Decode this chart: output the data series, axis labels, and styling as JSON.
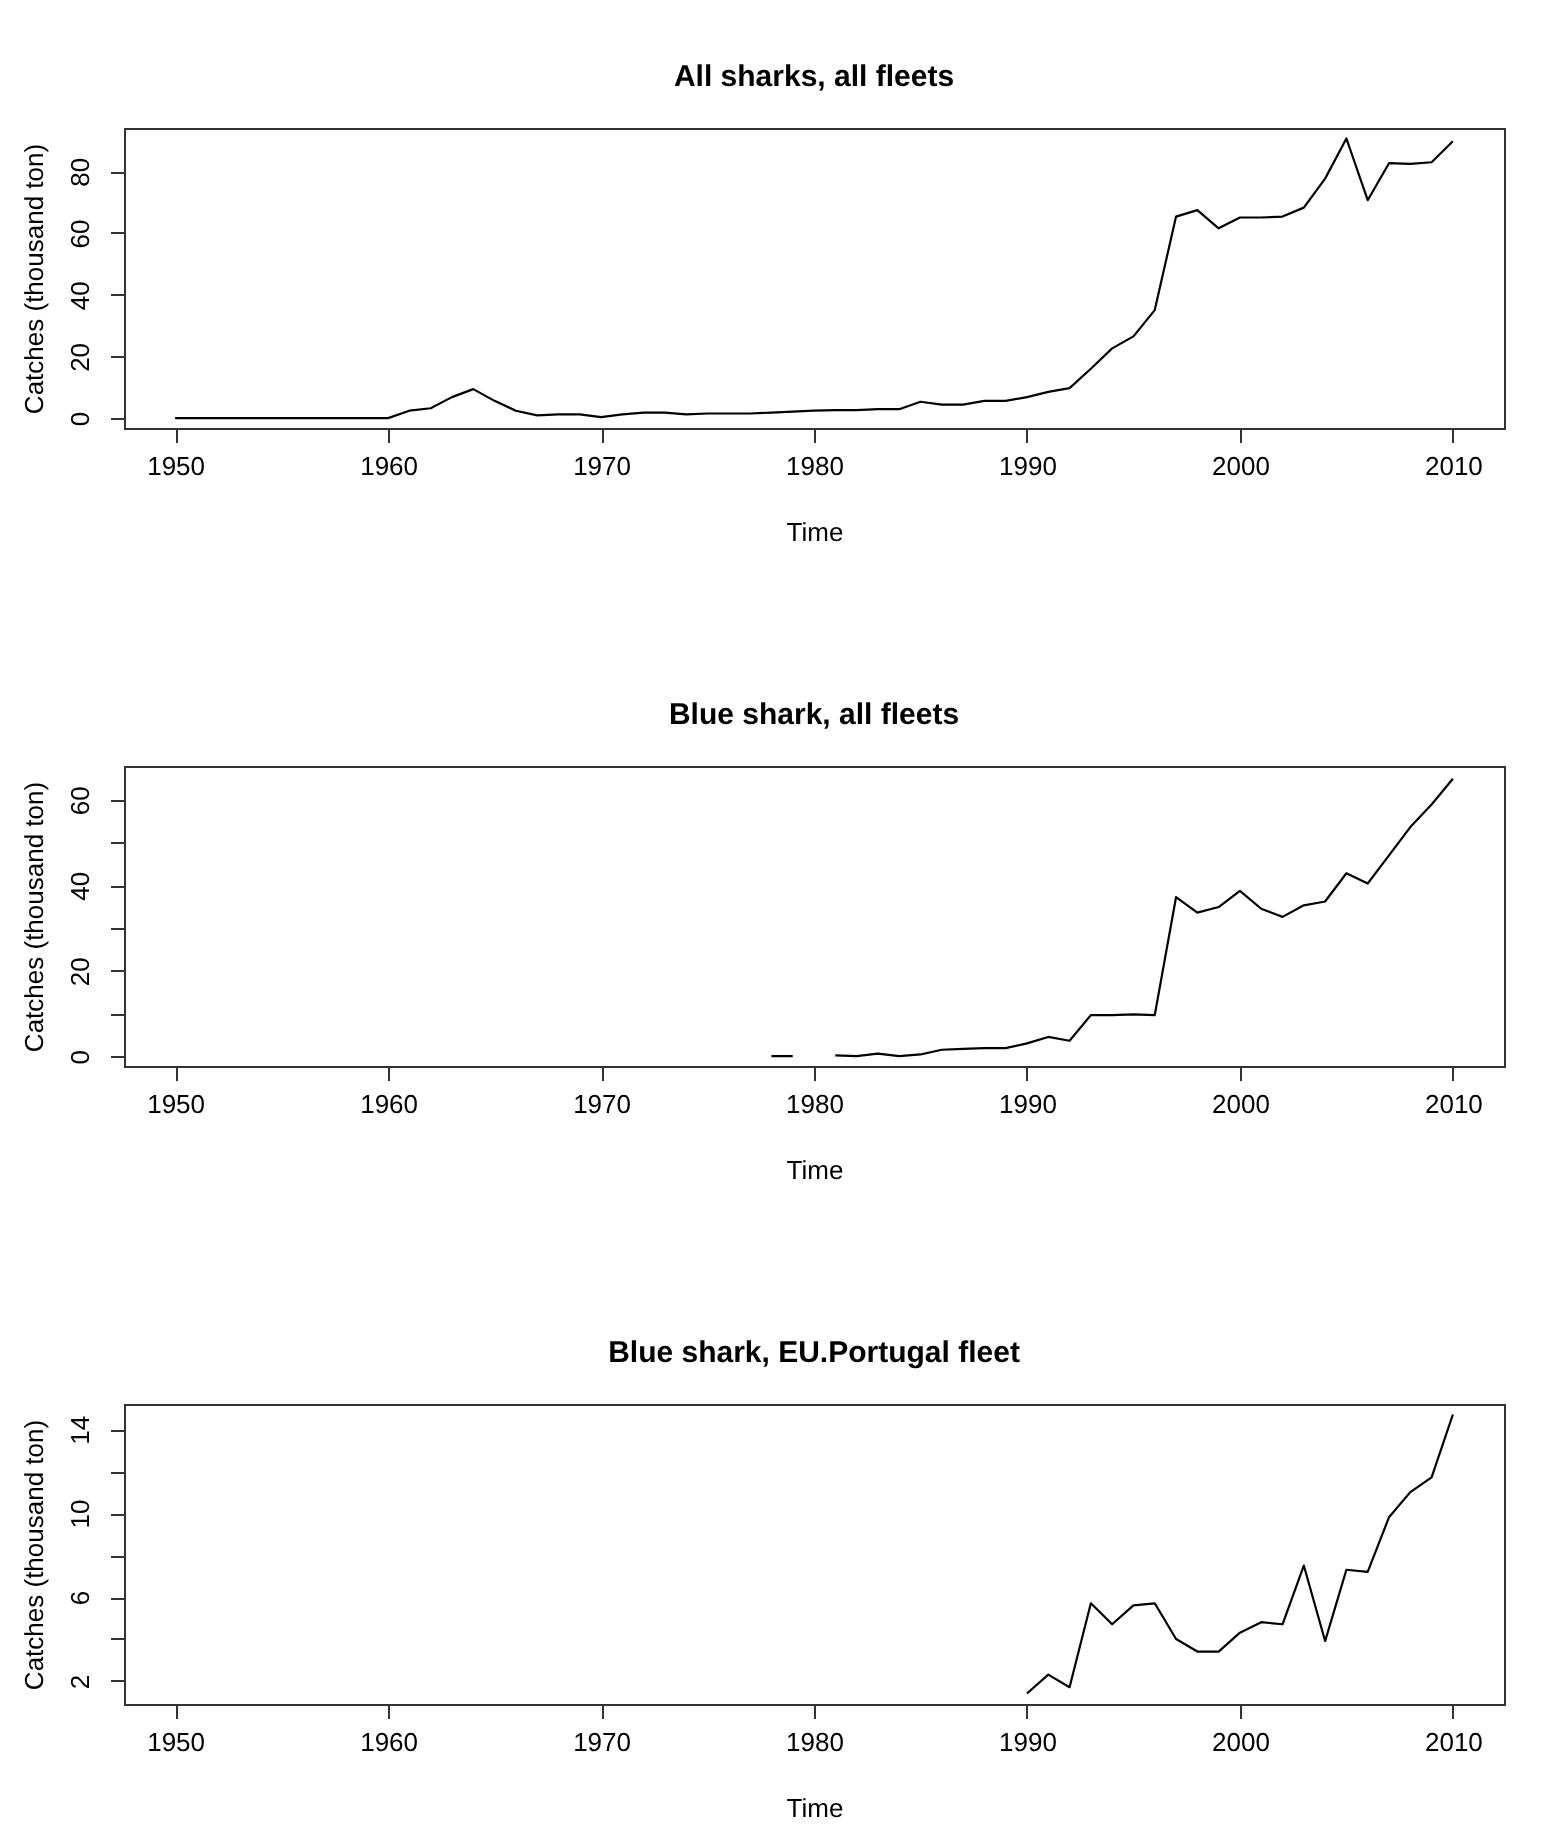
{
  "chart_data": [
    {
      "type": "line",
      "title": "All sharks, all fleets",
      "xlabel": "Time",
      "ylabel": "Catches (thousand ton)",
      "color": "#000000",
      "x": [
        1950,
        1951,
        1952,
        1953,
        1954,
        1955,
        1956,
        1957,
        1958,
        1959,
        1960,
        1961,
        1962,
        1963,
        1964,
        1965,
        1966,
        1967,
        1968,
        1969,
        1970,
        1971,
        1972,
        1973,
        1974,
        1975,
        1976,
        1977,
        1978,
        1979,
        1980,
        1981,
        1982,
        1983,
        1984,
        1985,
        1986,
        1987,
        1988,
        1989,
        1990,
        1991,
        1992,
        1993,
        1994,
        1995,
        1996,
        1997,
        1998,
        1999,
        2000,
        2001,
        2002,
        2003,
        2004,
        2005,
        2006,
        2007,
        2008,
        2009,
        2010
      ],
      "values": [
        0,
        0,
        0,
        0,
        0,
        0,
        0,
        0,
        0,
        0,
        0,
        2.4,
        3.2,
        6.8,
        9.4,
        5.6,
        2.4,
        0.9,
        1.2,
        1.2,
        0.3,
        1.2,
        1.8,
        1.8,
        1.2,
        1.5,
        1.5,
        1.5,
        1.8,
        2.1,
        2.4,
        2.6,
        2.6,
        2.9,
        2.9,
        5.3,
        4.4,
        4.4,
        5.6,
        5.6,
        6.8,
        8.5,
        9.7,
        16,
        22.6,
        26.5,
        35,
        65.3,
        67.4,
        61.5,
        65,
        65,
        65.3,
        68.2,
        77.6,
        90.6,
        70.6,
        82.6,
        82.4,
        82.9,
        89.7
      ],
      "xlim": [
        1947.6,
        2012.4
      ],
      "xticks": [
        1950,
        1960,
        1970,
        1980,
        1990,
        2000,
        2010
      ],
      "ylim": [
        -3.2,
        94
      ],
      "yticks": [
        0,
        20,
        40,
        60,
        80
      ],
      "grid": false
    },
    {
      "type": "line",
      "title": "Blue shark, all fleets",
      "xlabel": "Time",
      "ylabel": "Catches (thousand ton)",
      "color": "#000000",
      "x": [
        1978,
        1979,
        1980,
        1981,
        1982,
        1983,
        1984,
        1985,
        1986,
        1987,
        1988,
        1989,
        1990,
        1991,
        1992,
        1993,
        1994,
        1995,
        1996,
        1997,
        1998,
        1999,
        2000,
        2001,
        2002,
        2003,
        2004,
        2005,
        2006,
        2007,
        2008,
        2009,
        2010
      ],
      "values": [
        0,
        0,
        null,
        0.2,
        0,
        0.6,
        0,
        0.4,
        1.5,
        1.7,
        1.9,
        1.9,
        3,
        4.5,
        3.6,
        9.6,
        9.6,
        9.8,
        9.6,
        37.2,
        33.6,
        34.9,
        38.7,
        34.5,
        32.6,
        35.3,
        36.2,
        42.8,
        40.4,
        47,
        53.6,
        58.9,
        64.9
      ],
      "xlim": [
        1947.6,
        2012.4
      ],
      "xticks": [
        1950,
        1960,
        1970,
        1980,
        1990,
        2000,
        2010
      ],
      "ylim": [
        -2.3,
        67.9
      ],
      "yticks": [
        0,
        {
          "value": 10,
          "label": null
        },
        20,
        {
          "value": 30,
          "label": null
        },
        40,
        {
          "value": 50,
          "label": null
        },
        60
      ],
      "grid": false
    },
    {
      "type": "line",
      "title": "Blue shark, EU.Portugal fleet",
      "xlabel": "Time",
      "ylabel": "Catches (thousand ton)",
      "color": "#000000",
      "x": [
        1990,
        1991,
        1992,
        1993,
        1994,
        1995,
        1996,
        1997,
        1998,
        1999,
        2000,
        2001,
        2002,
        2003,
        2004,
        2005,
        2006,
        2007,
        2008,
        2009,
        2010
      ],
      "values": [
        1.4,
        2.3,
        1.7,
        5.7,
        4.7,
        5.6,
        5.7,
        4,
        3.4,
        3.4,
        4.3,
        4.8,
        4.7,
        7.5,
        3.9,
        7.3,
        7.2,
        9.8,
        11,
        11.7,
        14.7
      ],
      "xlim": [
        1947.6,
        2012.4
      ],
      "xticks": [
        1950,
        1960,
        1970,
        1980,
        1990,
        2000,
        2010
      ],
      "ylim": [
        0.9,
        15.2
      ],
      "yticks": [
        2,
        {
          "value": 4,
          "label": null
        },
        6,
        {
          "value": 8,
          "label": null
        },
        10,
        {
          "value": 12,
          "label": null
        },
        14
      ],
      "grid": false
    }
  ]
}
